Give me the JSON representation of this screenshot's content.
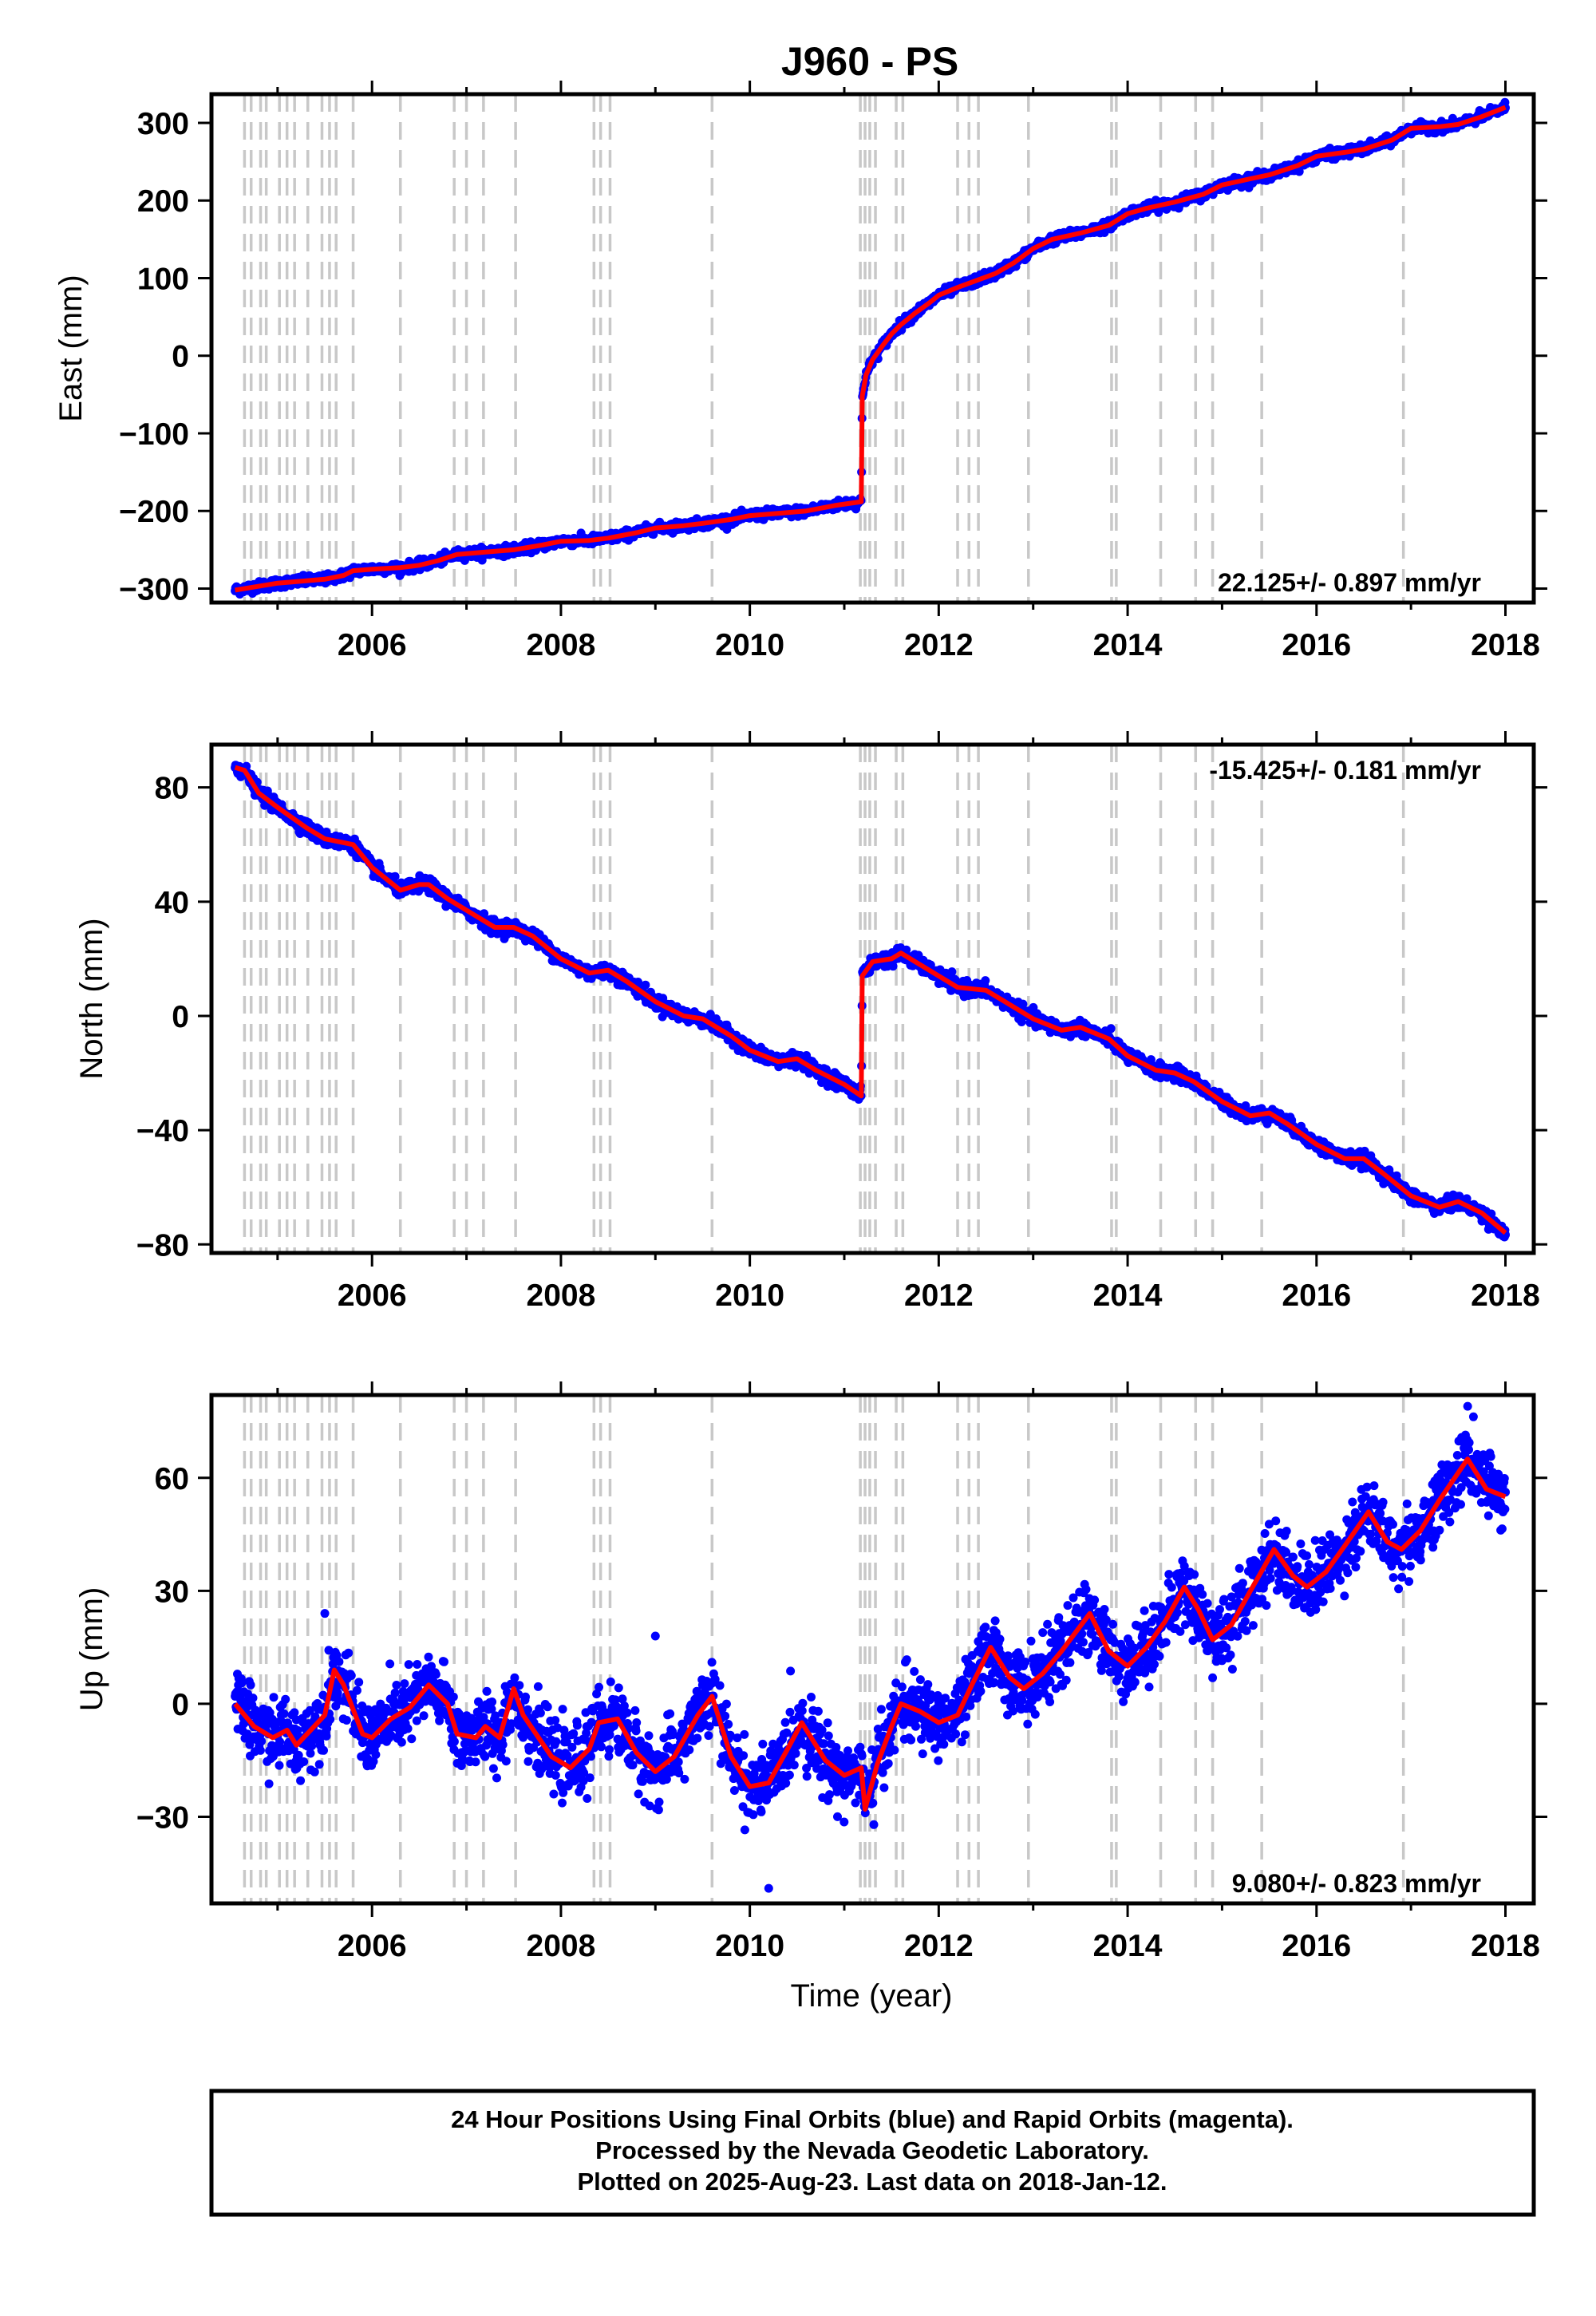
{
  "title": "J960 - PS",
  "xlabel": "Time (year)",
  "footer": {
    "line1": "24 Hour Positions Using Final Orbits (blue) and Rapid Orbits (magenta).",
    "line2": "Processed by the Nevada Geodetic Laboratory.",
    "line3": "Plotted on 2025-Aug-23. Last data on 2018-Jan-12."
  },
  "colors": {
    "observations": "#0000ff",
    "model": "#ff0000",
    "equipment_change": "#c8c8c8"
  },
  "chart_data": [
    {
      "type": "scatter",
      "name": "east",
      "ylabel": "East (mm)",
      "rate": "22.125+/- 0.897 mm/yr",
      "xlim": [
        2004.3,
        2018.3
      ],
      "ylim": [
        -318,
        337
      ],
      "xticks": [
        2006,
        2008,
        2010,
        2012,
        2014,
        2016,
        2018
      ],
      "yticks": [
        -300,
        -200,
        -100,
        0,
        100,
        200,
        300
      ],
      "ytick_labels": [
        "−300",
        "−200",
        "−100",
        "0",
        "100",
        "200",
        "300"
      ],
      "grid": false,
      "trend": [
        [
          2004.55,
          -302
        ],
        [
          2005.0,
          -293
        ],
        [
          2005.3,
          -290
        ],
        [
          2005.5,
          -288
        ],
        [
          2005.7,
          -283
        ],
        [
          2005.8,
          -277
        ],
        [
          2006.0,
          -275
        ],
        [
          2006.3,
          -273
        ],
        [
          2006.5,
          -270
        ],
        [
          2006.7,
          -264
        ],
        [
          2006.9,
          -256
        ],
        [
          2007.2,
          -253
        ],
        [
          2007.5,
          -250
        ],
        [
          2007.8,
          -244
        ],
        [
          2008.0,
          -239
        ],
        [
          2008.3,
          -238
        ],
        [
          2008.5,
          -235
        ],
        [
          2008.8,
          -228
        ],
        [
          2009.0,
          -222
        ],
        [
          2009.3,
          -219
        ],
        [
          2009.5,
          -216
        ],
        [
          2009.8,
          -211
        ],
        [
          2010.0,
          -206
        ],
        [
          2010.3,
          -203
        ],
        [
          2010.6,
          -200
        ],
        [
          2010.9,
          -193
        ],
        [
          2011.18,
          -188
        ],
        [
          2011.19,
          -52
        ],
        [
          2011.23,
          -25
        ],
        [
          2011.3,
          -5
        ],
        [
          2011.4,
          12
        ],
        [
          2011.5,
          28
        ],
        [
          2011.6,
          40
        ],
        [
          2011.75,
          55
        ],
        [
          2011.9,
          68
        ],
        [
          2012.0,
          78
        ],
        [
          2012.2,
          88
        ],
        [
          2012.4,
          97
        ],
        [
          2012.6,
          106
        ],
        [
          2012.8,
          120
        ],
        [
          2013.0,
          138
        ],
        [
          2013.2,
          150
        ],
        [
          2013.5,
          158
        ],
        [
          2013.8,
          168
        ],
        [
          2014.0,
          183
        ],
        [
          2014.2,
          190
        ],
        [
          2014.5,
          198
        ],
        [
          2014.8,
          208
        ],
        [
          2015.0,
          220
        ],
        [
          2015.3,
          228
        ],
        [
          2015.5,
          233
        ],
        [
          2015.8,
          245
        ],
        [
          2016.0,
          257
        ],
        [
          2016.3,
          262
        ],
        [
          2016.5,
          266
        ],
        [
          2016.8,
          278
        ],
        [
          2017.0,
          293
        ],
        [
          2017.3,
          295
        ],
        [
          2017.5,
          298
        ],
        [
          2017.75,
          308
        ],
        [
          2018.0,
          320
        ]
      ],
      "noise": 3.0,
      "markers": [
        {
          "x": 2011.2,
          "y": -48
        }
      ]
    },
    {
      "type": "scatter",
      "name": "north",
      "ylabel": "North (mm)",
      "rate": "-15.425+/- 0.181 mm/yr",
      "xlim": [
        2004.3,
        2018.3
      ],
      "ylim": [
        -83,
        95
      ],
      "xticks": [
        2006,
        2008,
        2010,
        2012,
        2014,
        2016,
        2018
      ],
      "yticks": [
        -80,
        -40,
        0,
        40,
        80
      ],
      "ytick_labels": [
        "−80",
        "−40",
        "0",
        "40",
        "80"
      ],
      "grid": false,
      "trend": [
        [
          2004.55,
          87
        ],
        [
          2004.65,
          86
        ],
        [
          2004.8,
          78
        ],
        [
          2005.0,
          73
        ],
        [
          2005.3,
          66
        ],
        [
          2005.5,
          62
        ],
        [
          2005.8,
          60
        ],
        [
          2006.0,
          52
        ],
        [
          2006.3,
          44
        ],
        [
          2006.5,
          46
        ],
        [
          2006.6,
          46
        ],
        [
          2006.8,
          41
        ],
        [
          2007.0,
          37
        ],
        [
          2007.3,
          31
        ],
        [
          2007.5,
          31
        ],
        [
          2007.7,
          28
        ],
        [
          2008.0,
          20
        ],
        [
          2008.3,
          15
        ],
        [
          2008.5,
          16
        ],
        [
          2008.7,
          12
        ],
        [
          2009.0,
          5
        ],
        [
          2009.3,
          0
        ],
        [
          2009.5,
          -1
        ],
        [
          2009.8,
          -7
        ],
        [
          2010.0,
          -12
        ],
        [
          2010.3,
          -16
        ],
        [
          2010.5,
          -15
        ],
        [
          2010.7,
          -19
        ],
        [
          2011.0,
          -24
        ],
        [
          2011.18,
          -28
        ],
        [
          2011.19,
          14
        ],
        [
          2011.3,
          19
        ],
        [
          2011.5,
          20
        ],
        [
          2011.6,
          22
        ],
        [
          2011.8,
          18
        ],
        [
          2012.0,
          14
        ],
        [
          2012.2,
          10
        ],
        [
          2012.5,
          9
        ],
        [
          2012.7,
          5
        ],
        [
          2013.0,
          -1
        ],
        [
          2013.3,
          -5
        ],
        [
          2013.5,
          -4
        ],
        [
          2013.8,
          -8
        ],
        [
          2014.0,
          -14
        ],
        [
          2014.3,
          -19
        ],
        [
          2014.5,
          -20
        ],
        [
          2014.7,
          -23
        ],
        [
          2015.0,
          -30
        ],
        [
          2015.3,
          -35
        ],
        [
          2015.5,
          -34
        ],
        [
          2015.7,
          -38
        ],
        [
          2016.0,
          -45
        ],
        [
          2016.3,
          -50
        ],
        [
          2016.5,
          -50
        ],
        [
          2016.7,
          -55
        ],
        [
          2017.0,
          -63
        ],
        [
          2017.3,
          -67
        ],
        [
          2017.5,
          -65
        ],
        [
          2017.75,
          -69
        ],
        [
          2018.0,
          -76
        ]
      ],
      "noise": 1.2,
      "markers": []
    },
    {
      "type": "scatter",
      "name": "up",
      "ylabel": "Up (mm)",
      "rate": "9.080+/- 0.823 mm/yr",
      "xlim": [
        2004.3,
        2018.3
      ],
      "ylim": [
        -53,
        82
      ],
      "xticks": [
        2006,
        2008,
        2010,
        2012,
        2014,
        2016,
        2018
      ],
      "yticks": [
        -30,
        0,
        30,
        60
      ],
      "ytick_labels": [
        "−30",
        "0",
        "30",
        "60"
      ],
      "grid": false,
      "trend": [
        [
          2004.55,
          0
        ],
        [
          2004.75,
          -6
        ],
        [
          2004.95,
          -9
        ],
        [
          2005.1,
          -7
        ],
        [
          2005.2,
          -11
        ],
        [
          2005.35,
          -7
        ],
        [
          2005.5,
          -3
        ],
        [
          2005.6,
          9
        ],
        [
          2005.7,
          5
        ],
        [
          2005.9,
          -8
        ],
        [
          2006.0,
          -9
        ],
        [
          2006.2,
          -4
        ],
        [
          2006.4,
          -1
        ],
        [
          2006.6,
          5
        ],
        [
          2006.8,
          0
        ],
        [
          2006.9,
          -8
        ],
        [
          2007.1,
          -9
        ],
        [
          2007.2,
          -6
        ],
        [
          2007.35,
          -9
        ],
        [
          2007.5,
          4
        ],
        [
          2007.6,
          -3
        ],
        [
          2007.9,
          -14
        ],
        [
          2008.1,
          -17
        ],
        [
          2008.3,
          -12
        ],
        [
          2008.4,
          -5
        ],
        [
          2008.6,
          -4
        ],
        [
          2008.8,
          -13
        ],
        [
          2009.0,
          -18
        ],
        [
          2009.2,
          -14
        ],
        [
          2009.45,
          -3
        ],
        [
          2009.6,
          2
        ],
        [
          2009.8,
          -14
        ],
        [
          2010.0,
          -22
        ],
        [
          2010.2,
          -21
        ],
        [
          2010.4,
          -12
        ],
        [
          2010.55,
          -5
        ],
        [
          2010.8,
          -15
        ],
        [
          2011.0,
          -19
        ],
        [
          2011.18,
          -17
        ],
        [
          2011.22,
          -28
        ],
        [
          2011.35,
          -16
        ],
        [
          2011.5,
          -6
        ],
        [
          2011.6,
          0
        ],
        [
          2011.8,
          -2
        ],
        [
          2012.0,
          -5
        ],
        [
          2012.2,
          -3
        ],
        [
          2012.35,
          5
        ],
        [
          2012.55,
          15
        ],
        [
          2012.75,
          7
        ],
        [
          2012.9,
          4
        ],
        [
          2013.1,
          8
        ],
        [
          2013.3,
          14
        ],
        [
          2013.6,
          24
        ],
        [
          2013.8,
          14
        ],
        [
          2014.0,
          10
        ],
        [
          2014.2,
          15
        ],
        [
          2014.4,
          22
        ],
        [
          2014.6,
          31
        ],
        [
          2014.75,
          25
        ],
        [
          2014.9,
          17
        ],
        [
          2015.1,
          21
        ],
        [
          2015.3,
          30
        ],
        [
          2015.55,
          41
        ],
        [
          2015.75,
          34
        ],
        [
          2015.9,
          31
        ],
        [
          2016.1,
          35
        ],
        [
          2016.3,
          42
        ],
        [
          2016.55,
          51
        ],
        [
          2016.75,
          43
        ],
        [
          2016.9,
          41
        ],
        [
          2017.1,
          46
        ],
        [
          2017.3,
          54
        ],
        [
          2017.6,
          65
        ],
        [
          2017.8,
          57
        ],
        [
          2018.0,
          55
        ]
      ],
      "noise": 4.5,
      "markers": [
        {
          "x": 2010.2,
          "y": -49
        },
        {
          "x": 2009.0,
          "y": 18
        },
        {
          "x": 2005.5,
          "y": 24
        },
        {
          "x": 2017.6,
          "y": 79
        }
      ]
    }
  ],
  "equipment_changes": [
    2004.65,
    2004.72,
    2004.82,
    2004.88,
    2005.02,
    2005.1,
    2005.18,
    2005.32,
    2005.47,
    2005.55,
    2005.62,
    2005.8,
    2006.3,
    2006.87,
    2007.0,
    2007.18,
    2007.52,
    2008.35,
    2008.42,
    2008.52,
    2009.6,
    2011.17,
    2011.22,
    2011.27,
    2011.33,
    2011.55,
    2011.62,
    2012.2,
    2012.32,
    2012.42,
    2012.95,
    2013.83,
    2013.88,
    2014.35,
    2014.72,
    2014.9,
    2015.42,
    2016.92
  ]
}
